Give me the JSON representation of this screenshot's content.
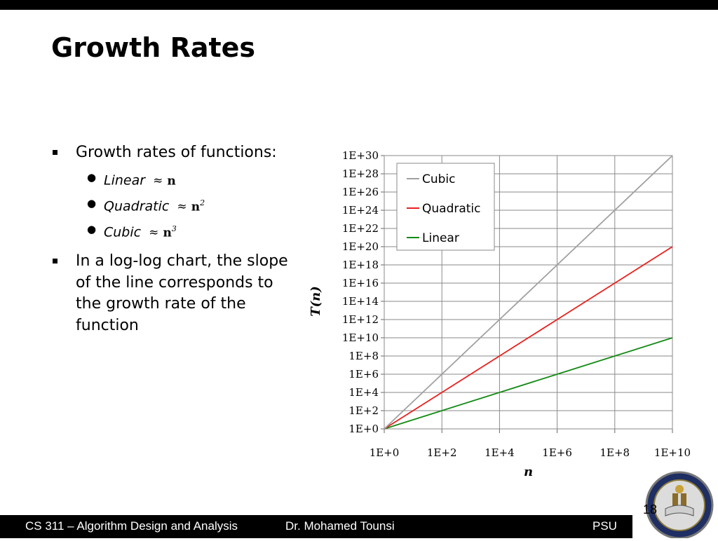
{
  "slide": {
    "title": "Growth Rates",
    "bullet1": "Growth rates of functions:",
    "sub_items": [
      {
        "name": "Linear",
        "approx": "≈",
        "expr": "n",
        "exp": ""
      },
      {
        "name": "Quadratic",
        "approx": "≈",
        "expr": "n",
        "exp": "2"
      },
      {
        "name": "Cubic",
        "approx": "≈",
        "expr": "n",
        "exp": "3"
      }
    ],
    "bullet2": "In a log-log chart, the slope of the line corresponds to the growth rate of the function",
    "page_number": "18"
  },
  "footer": {
    "course": "CS 311 – Algorithm Design and Analysis",
    "author": "Dr. Mohamed Tounsi",
    "org": "PSU"
  },
  "chart_data": {
    "type": "line",
    "x_scale": "log",
    "y_scale": "log",
    "xlabel": "n",
    "ylabel": "T(n)",
    "xlim": [
      1,
      10000000000.0
    ],
    "ylim": [
      1,
      1e+30
    ],
    "x_ticks": [
      "1E+0",
      "1E+2",
      "1E+4",
      "1E+6",
      "1E+8",
      "1E+10"
    ],
    "y_ticks": [
      "1E+0",
      "1E+2",
      "1E+4",
      "1E+6",
      "1E+8",
      "1E+10",
      "1E+12",
      "1E+14",
      "1E+16",
      "1E+18",
      "1E+20",
      "1E+22",
      "1E+24",
      "1E+26",
      "1E+28",
      "1E+30"
    ],
    "grid": true,
    "legend_position": "top-left",
    "x": [
      1,
      100.0,
      10000.0,
      1000000.0,
      100000000.0,
      10000000000.0
    ],
    "series": [
      {
        "name": "Cubic",
        "color": "#a0a0a0",
        "values": [
          1,
          1000000.0,
          1000000000000.0,
          1e+18,
          1e+24,
          1e+30
        ]
      },
      {
        "name": "Quadratic",
        "color": "#e8211d",
        "values": [
          1,
          10000.0,
          100000000.0,
          1000000000000.0,
          1e+16,
          1e+20
        ]
      },
      {
        "name": "Linear",
        "color": "#138a13",
        "values": [
          1,
          100.0,
          10000.0,
          1000000.0,
          100000000.0,
          10000000000.0
        ]
      }
    ]
  }
}
